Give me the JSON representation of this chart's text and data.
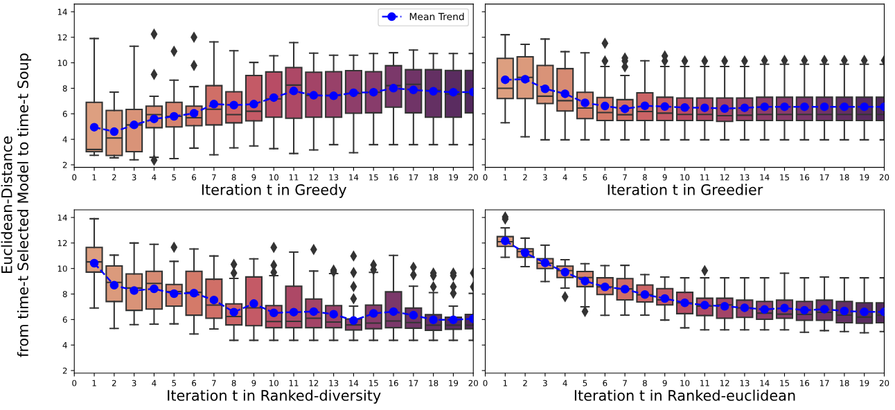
{
  "chart_data": [
    {
      "type": "box",
      "xlabel": "Iteration t in Greedy",
      "ylabel": "Euclidean-Distance\nfrom time-t Selected Model to time-t Soup",
      "x": [
        1,
        2,
        3,
        4,
        5,
        6,
        7,
        8,
        9,
        10,
        11,
        12,
        13,
        14,
        15,
        16,
        17,
        18,
        19,
        20
      ],
      "colors": [
        "#dd9f80",
        "#db9a7c",
        "#d99378",
        "#d78b73",
        "#d6836e",
        "#d47a69",
        "#d06f67",
        "#cb6466",
        "#c45a66",
        "#b84c65",
        "#ad4866",
        "#a34467",
        "#984169",
        "#8e3e6a",
        "#883c6b",
        "#7b386a",
        "#703467",
        "#643063",
        "#5a2c60",
        "#52285c"
      ],
      "boxes": [
        {
          "low": 2.75,
          "q1": 3.03,
          "median": 3.2,
          "q3": 6.9,
          "high": 11.9
        },
        {
          "low": 2.55,
          "q1": 2.73,
          "median": 4.1,
          "q3": 6.26,
          "high": 7.7
        },
        {
          "low": 2.39,
          "q1": 3.03,
          "median": 5.13,
          "q3": 6.34,
          "high": 11.3
        },
        {
          "low": 2.59,
          "q1": 4.91,
          "median": 5.94,
          "q3": 6.6,
          "high": 7.37,
          "outliers": [
            12.25,
            9.08,
            2.37
          ]
        },
        {
          "low": 2.49,
          "q1": 4.97,
          "median": 5.8,
          "q3": 6.9,
          "high": 8.64,
          "outliers": [
            10.9
          ]
        },
        {
          "low": 3.31,
          "q1": 5.07,
          "median": 5.69,
          "q3": 6.6,
          "high": 8.13,
          "outliers": [
            12.0,
            9.79
          ]
        },
        {
          "low": 2.79,
          "q1": 5.13,
          "median": 6.36,
          "q3": 8.21,
          "high": 11.64
        },
        {
          "low": 3.33,
          "q1": 5.29,
          "median": 5.94,
          "q3": 7.73,
          "high": 10.94
        },
        {
          "low": 3.48,
          "q1": 5.45,
          "median": 6.2,
          "q3": 9.0,
          "high": 10.03
        },
        {
          "low": 3.27,
          "q1": 5.73,
          "median": 7.17,
          "q3": 9.28,
          "high": 10.55
        },
        {
          "low": 2.89,
          "q1": 5.65,
          "median": 8.25,
          "q3": 9.63,
          "high": 11.58
        },
        {
          "low": 3.17,
          "q1": 5.73,
          "median": 7.45,
          "q3": 9.26,
          "high": 10.75
        },
        {
          "low": 3.58,
          "q1": 5.73,
          "median": 7.45,
          "q3": 9.3,
          "high": 10.59
        },
        {
          "low": 2.95,
          "q1": 6.04,
          "median": 7.6,
          "q3": 9.38,
          "high": 10.59
        },
        {
          "low": 3.58,
          "q1": 6.08,
          "median": 7.69,
          "q3": 9.3,
          "high": 10.73
        },
        {
          "low": 3.58,
          "q1": 6.52,
          "median": 8.21,
          "q3": 9.77,
          "high": 10.79
        },
        {
          "low": 3.58,
          "q1": 6.08,
          "median": 8.31,
          "q3": 9.46,
          "high": 11.0
        },
        {
          "low": 3.58,
          "q1": 5.73,
          "median": 7.83,
          "q3": 9.46,
          "high": 10.73
        },
        {
          "low": 3.58,
          "q1": 5.73,
          "median": 7.55,
          "q3": 9.4,
          "high": 10.73
        },
        {
          "low": 3.58,
          "q1": 6.08,
          "median": 7.6,
          "q3": 9.4,
          "high": 10.73
        }
      ],
      "series": [
        {
          "type": "line",
          "name": "Mean Trend",
          "color": "#0000ff",
          "marker": "circle",
          "line_style": "dashed",
          "x": [
            1,
            2,
            3,
            4,
            5,
            6,
            7,
            8,
            9,
            10,
            11,
            12,
            13,
            14,
            15,
            16,
            17,
            18,
            19,
            20
          ],
          "values": [
            4.95,
            4.6,
            5.13,
            5.6,
            5.8,
            6.04,
            6.76,
            6.68,
            6.76,
            7.27,
            7.79,
            7.45,
            7.41,
            7.65,
            7.69,
            8.01,
            7.87,
            7.77,
            7.69,
            7.71
          ]
        }
      ],
      "legend": "top right",
      "xlim": [
        0,
        20
      ],
      "xticks": [
        0,
        1,
        2,
        3,
        4,
        5,
        6,
        7,
        8,
        9,
        10,
        11,
        12,
        13,
        14,
        15,
        16,
        17,
        18,
        19,
        20
      ],
      "ylim": [
        1.8,
        14.6
      ],
      "yticks": [
        2,
        4,
        6,
        8,
        10,
        12,
        14
      ]
    },
    {
      "type": "box",
      "xlabel": "Iteration t in Greedier",
      "x": [
        1,
        2,
        3,
        4,
        5,
        6,
        7,
        8,
        9,
        10,
        11,
        12,
        13,
        14,
        15,
        16,
        17,
        18,
        19,
        20
      ],
      "colors": [
        "#dd9f80",
        "#db9a7c",
        "#d99378",
        "#d78b73",
        "#d6836e",
        "#d47a69",
        "#d06f67",
        "#cb6466",
        "#c45a66",
        "#b84c65",
        "#ad4866",
        "#a34467",
        "#984169",
        "#8e3e6a",
        "#883c6b",
        "#7b386a",
        "#703467",
        "#643063",
        "#5a2c60",
        "#52285c"
      ],
      "boxes": [
        {
          "low": 5.3,
          "q1": 7.2,
          "median": 8.0,
          "q3": 10.35,
          "high": 12.2
        },
        {
          "low": 4.2,
          "q1": 7.2,
          "median": 8.85,
          "q3": 10.47,
          "high": 11.45
        },
        {
          "low": 3.96,
          "q1": 6.8,
          "median": 7.38,
          "q3": 9.79,
          "high": 11.86
        },
        {
          "low": 3.96,
          "q1": 6.22,
          "median": 7.03,
          "q3": 9.54,
          "high": 10.87
        },
        {
          "low": 3.96,
          "q1": 5.62,
          "median": 6.45,
          "q3": 7.69,
          "high": 10.78
        },
        {
          "low": 3.96,
          "q1": 5.47,
          "median": 6.1,
          "q3": 7.28,
          "high": 9.71,
          "outliers": [
            11.53,
            10.14
          ]
        },
        {
          "low": 3.96,
          "q1": 5.47,
          "median": 5.93,
          "q3": 7.11,
          "high": 9.0,
          "outliers": [
            10.37,
            10.14,
            9.68
          ]
        },
        {
          "low": 3.96,
          "q1": 5.47,
          "median": 6.18,
          "q3": 7.65,
          "high": 10.16
        },
        {
          "low": 3.96,
          "q1": 5.47,
          "median": 6.05,
          "q3": 7.3,
          "high": 9.71,
          "outliers": [
            10.54,
            10.14
          ]
        },
        {
          "low": 3.96,
          "q1": 5.47,
          "median": 5.95,
          "q3": 7.24,
          "high": 9.71,
          "outliers": [
            10.14
          ]
        },
        {
          "low": 3.96,
          "q1": 5.47,
          "median": 5.95,
          "q3": 7.24,
          "high": 9.71,
          "outliers": [
            10.14
          ]
        },
        {
          "low": 3.96,
          "q1": 5.41,
          "median": 5.85,
          "q3": 7.24,
          "high": 9.71,
          "outliers": [
            10.14
          ]
        },
        {
          "low": 3.96,
          "q1": 5.47,
          "median": 5.89,
          "q3": 7.24,
          "high": 9.71,
          "outliers": [
            10.14
          ]
        },
        {
          "low": 3.96,
          "q1": 5.47,
          "median": 5.95,
          "q3": 7.3,
          "high": 9.89,
          "outliers": [
            10.18
          ]
        },
        {
          "low": 3.96,
          "q1": 5.47,
          "median": 5.95,
          "q3": 7.3,
          "high": 9.89,
          "outliers": [
            10.18
          ]
        },
        {
          "low": 3.96,
          "q1": 5.47,
          "median": 5.95,
          "q3": 7.3,
          "high": 9.89,
          "outliers": [
            10.18
          ]
        },
        {
          "low": 3.96,
          "q1": 5.47,
          "median": 5.95,
          "q3": 7.3,
          "high": 9.89,
          "outliers": [
            10.18
          ]
        },
        {
          "low": 3.96,
          "q1": 5.47,
          "median": 5.95,
          "q3": 7.3,
          "high": 9.89,
          "outliers": [
            10.18
          ]
        },
        {
          "low": 3.96,
          "q1": 5.47,
          "median": 5.95,
          "q3": 7.3,
          "high": 9.89,
          "outliers": [
            10.18
          ]
        },
        {
          "low": 3.96,
          "q1": 5.47,
          "median": 5.95,
          "q3": 7.3,
          "high": 9.89,
          "outliers": [
            10.18
          ]
        }
      ],
      "series": [
        {
          "type": "line",
          "color": "#0000ff",
          "marker": "circle",
          "line_style": "dashed",
          "x": [
            1,
            2,
            3,
            4,
            5,
            6,
            7,
            8,
            9,
            10,
            11,
            12,
            13,
            14,
            15,
            16,
            17,
            18,
            19,
            20
          ],
          "values": [
            8.67,
            8.71,
            7.96,
            7.57,
            6.86,
            6.61,
            6.39,
            6.63,
            6.57,
            6.49,
            6.47,
            6.41,
            6.47,
            6.55,
            6.55,
            6.55,
            6.55,
            6.55,
            6.55,
            6.55
          ]
        }
      ],
      "xlim": [
        0,
        20
      ],
      "xticks": [
        0,
        1,
        2,
        3,
        4,
        5,
        6,
        7,
        8,
        9,
        10,
        11,
        12,
        13,
        14,
        15,
        16,
        17,
        18,
        19,
        20
      ],
      "ylim": [
        1.8,
        14.6
      ],
      "yticks": [
        2,
        4,
        6,
        8,
        10,
        12,
        14
      ],
      "tick_labels": "x"
    },
    {
      "type": "box",
      "xlabel": "Iteration t in Ranked-diversity",
      "x": [
        1,
        2,
        3,
        4,
        5,
        6,
        7,
        8,
        9,
        10,
        11,
        12,
        13,
        14,
        15,
        16,
        17,
        18,
        19,
        20
      ],
      "colors": [
        "#dd9f80",
        "#db9a7c",
        "#d99378",
        "#d78b73",
        "#d6836e",
        "#d47a69",
        "#d06f67",
        "#cb6466",
        "#c45a66",
        "#b84c65",
        "#ad4866",
        "#a34467",
        "#984169",
        "#8e3e6a",
        "#883c6b",
        "#7b386a",
        "#703467",
        "#643063",
        "#5a2c60",
        "#52285c"
      ],
      "boxes": [
        {
          "low": 6.9,
          "q1": 9.72,
          "median": 10.52,
          "q3": 11.65,
          "high": 13.9
        },
        {
          "low": 5.3,
          "q1": 7.41,
          "median": 8.91,
          "q3": 10.2,
          "high": 11.05
        },
        {
          "low": 5.6,
          "q1": 6.72,
          "median": 8.47,
          "q3": 9.58,
          "high": 12.0
        },
        {
          "low": 5.64,
          "q1": 6.82,
          "median": 8.83,
          "q3": 9.78,
          "high": 11.9
        },
        {
          "low": 5.66,
          "q1": 7.05,
          "median": 8.19,
          "q3": 8.75,
          "high": 10.56,
          "outliers": [
            11.67
          ]
        },
        {
          "low": 4.87,
          "q1": 6.34,
          "median": 8.13,
          "q3": 9.78,
          "high": 11.53
        },
        {
          "low": 5.26,
          "q1": 6.1,
          "median": 7.13,
          "q3": 9.16,
          "high": 10.98
        },
        {
          "low": 4.37,
          "q1": 5.58,
          "median": 6.24,
          "q3": 7.23,
          "high": 9.22,
          "outliers": [
            10.32,
            9.64
          ]
        },
        {
          "low": 4.37,
          "q1": 5.52,
          "median": 6.92,
          "q3": 9.34,
          "high": 10.76
        },
        {
          "low": 4.37,
          "q1": 5.36,
          "median": 5.84,
          "q3": 7.09,
          "high": 9.44,
          "outliers": [
            11.65,
            10.26,
            9.7
          ]
        },
        {
          "low": 4.37,
          "q1": 5.36,
          "median": 5.86,
          "q3": 8.61,
          "high": 11.29
        },
        {
          "low": 4.37,
          "q1": 5.36,
          "median": 6.1,
          "q3": 7.61,
          "high": 9.8,
          "outliers": [
            11.49
          ]
        },
        {
          "low": 4.37,
          "q1": 5.36,
          "median": 5.8,
          "q3": 7.09,
          "high": 9.6,
          "outliers": [
            9.88,
            9.74
          ]
        },
        {
          "low": 4.37,
          "q1": 5.18,
          "median": 5.58,
          "q3": 6.04,
          "high": 7.05,
          "outliers": [
            10.98,
            9.68,
            8.59,
            7.63
          ]
        },
        {
          "low": 4.37,
          "q1": 5.28,
          "median": 5.72,
          "q3": 7.13,
          "high": 9.7,
          "outliers": [
            10.28,
            9.9
          ]
        },
        {
          "low": 4.37,
          "q1": 5.36,
          "median": 5.88,
          "q3": 8.17,
          "high": 11.03
        },
        {
          "low": 4.37,
          "q1": 5.32,
          "median": 5.76,
          "q3": 6.9,
          "high": 8.61,
          "outliers": [
            10.1,
            9.5
          ]
        },
        {
          "low": 4.37,
          "q1": 5.16,
          "median": 5.56,
          "q3": 6.38,
          "high": 8.11,
          "outliers": [
            9.64,
            9.44,
            8.57
          ]
        },
        {
          "low": 4.37,
          "q1": 5.24,
          "median": 5.56,
          "q3": 6.18,
          "high": 7.05,
          "outliers": [
            9.64,
            9.44,
            8.57,
            8.05
          ]
        },
        {
          "low": 4.37,
          "q1": 5.28,
          "median": 5.56,
          "q3": 6.4,
          "high": 8.05,
          "outliers": [
            9.64,
            8.57
          ]
        }
      ],
      "series": [
        {
          "type": "line",
          "color": "#0000ff",
          "marker": "circle",
          "line_style": "dashed",
          "x": [
            1,
            2,
            3,
            4,
            5,
            6,
            7,
            8,
            9,
            10,
            11,
            12,
            13,
            14,
            15,
            16,
            17,
            18,
            19,
            20
          ],
          "values": [
            10.42,
            8.69,
            8.27,
            8.41,
            8.03,
            8.07,
            7.53,
            6.58,
            7.25,
            6.52,
            6.58,
            6.62,
            6.42,
            5.92,
            6.48,
            6.62,
            6.34,
            5.98,
            5.98,
            6.06
          ]
        }
      ],
      "xlim": [
        0,
        20
      ],
      "xticks": [
        0,
        1,
        2,
        3,
        4,
        5,
        6,
        7,
        8,
        9,
        10,
        11,
        12,
        13,
        14,
        15,
        16,
        17,
        18,
        19,
        20
      ],
      "ylim": [
        1.8,
        14.6
      ],
      "yticks": [
        2,
        4,
        6,
        8,
        10,
        12,
        14
      ]
    },
    {
      "type": "box",
      "xlabel": "Iteration t in Ranked-euclidean",
      "x": [
        1,
        2,
        3,
        4,
        5,
        6,
        7,
        8,
        9,
        10,
        11,
        12,
        13,
        14,
        15,
        16,
        17,
        18,
        19,
        20
      ],
      "colors": [
        "#dd9f80",
        "#db9a7c",
        "#d99378",
        "#d78b73",
        "#d6836e",
        "#d47a69",
        "#d06f67",
        "#cb6466",
        "#c45a66",
        "#b84c65",
        "#ad4866",
        "#a34467",
        "#984169",
        "#8e3e6a",
        "#883c6b",
        "#7b386a",
        "#703467",
        "#643063",
        "#5a2c60",
        "#52285c"
      ],
      "boxes": [
        {
          "low": 10.88,
          "q1": 11.73,
          "median": 12.1,
          "q3": 12.5,
          "high": 13.19,
          "outliers": [
            14.04,
            13.88
          ]
        },
        {
          "low": 10.15,
          "q1": 10.88,
          "median": 11.33,
          "q3": 11.54,
          "high": 12.38
        },
        {
          "low": 8.98,
          "q1": 10.0,
          "median": 10.42,
          "q3": 10.77,
          "high": 11.83
        },
        {
          "low": 8.46,
          "q1": 9.29,
          "median": 9.83,
          "q3": 10.19,
          "high": 10.69,
          "outliers": [
            7.79
          ]
        },
        {
          "low": 7.0,
          "q1": 8.58,
          "median": 9.29,
          "q3": 9.77,
          "high": 10.38,
          "outliers": [
            6.63
          ]
        },
        {
          "low": 6.33,
          "q1": 7.96,
          "median": 8.56,
          "q3": 9.27,
          "high": 10.23
        },
        {
          "low": 6.35,
          "q1": 7.54,
          "median": 8.4,
          "q3": 9.21,
          "high": 10.25
        },
        {
          "low": 6.35,
          "q1": 7.38,
          "median": 7.94,
          "q3": 8.71,
          "high": 9.52
        },
        {
          "low": 5.96,
          "q1": 7.15,
          "median": 7.54,
          "q3": 8.42,
          "high": 9.33
        },
        {
          "low": 5.35,
          "q1": 6.46,
          "median": 7.31,
          "q3": 8.13,
          "high": 9.27
        },
        {
          "low": 5.19,
          "q1": 6.31,
          "median": 7.06,
          "q3": 7.67,
          "high": 9.27,
          "outliers": [
            9.83
          ]
        },
        {
          "low": 5.19,
          "q1": 6.1,
          "median": 7.15,
          "q3": 7.67,
          "high": 9.27
        },
        {
          "low": 5.19,
          "q1": 6.17,
          "median": 6.92,
          "q3": 7.52,
          "high": 9.27
        },
        {
          "low": 5.19,
          "q1": 6.02,
          "median": 6.5,
          "q3": 7.42,
          "high": 9.27
        },
        {
          "low": 5.19,
          "q1": 6.1,
          "median": 6.42,
          "q3": 7.52,
          "high": 9.63
        },
        {
          "low": 5.0,
          "q1": 5.94,
          "median": 6.4,
          "q3": 7.42,
          "high": 9.27
        },
        {
          "low": 5.13,
          "q1": 5.94,
          "median": 6.56,
          "q3": 7.52,
          "high": 9.33
        },
        {
          "low": 5.06,
          "q1": 5.75,
          "median": 6.35,
          "q3": 7.42,
          "high": 9.27
        },
        {
          "low": 4.96,
          "q1": 5.71,
          "median": 6.19,
          "q3": 7.31,
          "high": 9.27
        },
        {
          "low": 5.06,
          "q1": 5.75,
          "median": 6.35,
          "q3": 7.31,
          "high": 9.27
        }
      ],
      "series": [
        {
          "type": "line",
          "color": "#0000ff",
          "marker": "circle",
          "line_style": "dashed",
          "x": [
            1,
            2,
            3,
            4,
            5,
            6,
            7,
            8,
            9,
            10,
            11,
            12,
            13,
            14,
            15,
            16,
            17,
            18,
            19,
            20
          ],
          "values": [
            12.17,
            11.23,
            10.44,
            9.71,
            9.02,
            8.56,
            8.38,
            7.96,
            7.65,
            7.31,
            7.13,
            7.04,
            6.92,
            6.79,
            6.9,
            6.73,
            6.81,
            6.67,
            6.6,
            6.6
          ]
        }
      ],
      "xlim": [
        0,
        20
      ],
      "xticks": [
        0,
        1,
        2,
        3,
        4,
        5,
        6,
        7,
        8,
        9,
        10,
        11,
        12,
        13,
        14,
        15,
        16,
        17,
        18,
        19,
        20
      ],
      "ylim": [
        1.8,
        14.6
      ],
      "yticks": [
        2,
        4,
        6,
        8,
        10,
        12,
        14
      ],
      "tick_labels": "x"
    }
  ]
}
